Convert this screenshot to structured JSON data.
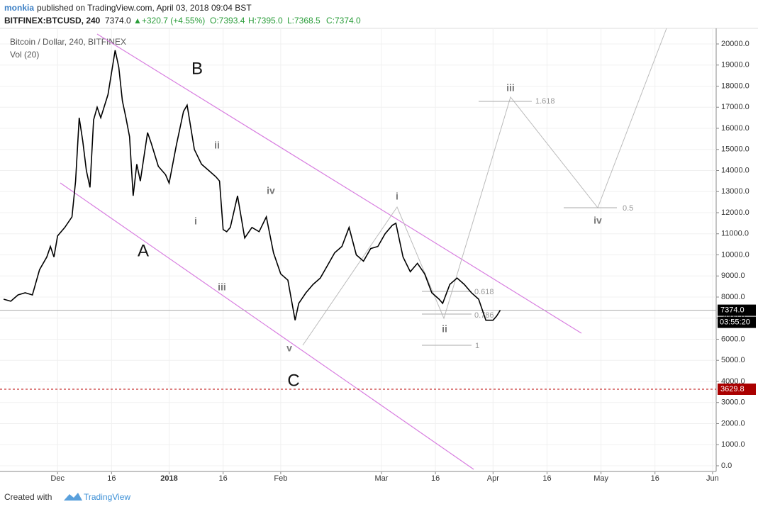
{
  "header": {
    "author": "monkia",
    "published": "published on TradingView.com, April 03, 2018 09:04 BST",
    "symbol": "BITFINEX:BTCUSD, 240",
    "last": "7374.0",
    "change": "▲+320.7 (+4.55%)",
    "ohlc_open": "O:7393.4",
    "ohlc_high": "H:7395.0",
    "ohlc_low": "L:7368.5",
    "ohlc_close": "C:7374.0"
  },
  "footer": {
    "created": "Created with",
    "brand": "TradingView"
  },
  "chart_data": {
    "type": "line",
    "legend": "Bitcoin / Dollar, 240, BITFINEX",
    "volume_legend": "Vol (20)",
    "x": [
      "2017-11-16",
      "2017-11-18",
      "2017-11-20",
      "2017-11-22",
      "2017-11-24",
      "2017-11-26",
      "2017-11-28",
      "2017-11-29",
      "2017-11-30",
      "2017-12-01",
      "2017-12-03",
      "2017-12-05",
      "2017-12-06",
      "2017-12-07",
      "2017-12-08",
      "2017-12-09",
      "2017-12-10",
      "2017-12-11",
      "2017-12-12",
      "2017-12-13",
      "2017-12-15",
      "2017-12-17",
      "2017-12-18",
      "2017-12-19",
      "2017-12-20",
      "2017-12-21",
      "2017-12-22",
      "2017-12-23",
      "2017-12-24",
      "2017-12-26",
      "2017-12-27",
      "2017-12-29",
      "2017-12-31",
      "2018-01-01",
      "2018-01-03",
      "2018-01-05",
      "2018-01-06",
      "2018-01-08",
      "2018-01-10",
      "2018-01-12",
      "2018-01-14",
      "2018-01-15",
      "2018-01-16",
      "2018-01-17",
      "2018-01-18",
      "2018-01-20",
      "2018-01-22",
      "2018-01-24",
      "2018-01-26",
      "2018-01-28",
      "2018-01-30",
      "2018-02-01",
      "2018-02-03",
      "2018-02-05",
      "2018-02-06",
      "2018-02-08",
      "2018-02-10",
      "2018-02-12",
      "2018-02-14",
      "2018-02-16",
      "2018-02-18",
      "2018-02-20",
      "2018-02-22",
      "2018-02-24",
      "2018-02-26",
      "2018-02-28",
      "2018-03-02",
      "2018-03-04",
      "2018-03-05",
      "2018-03-07",
      "2018-03-09",
      "2018-03-11",
      "2018-03-13",
      "2018-03-15",
      "2018-03-17",
      "2018-03-18",
      "2018-03-20",
      "2018-03-22",
      "2018-03-24",
      "2018-03-26",
      "2018-03-28",
      "2018-03-30",
      "2018-04-01",
      "2018-04-02",
      "2018-04-03"
    ],
    "series": [
      {
        "name": "BTCUSD",
        "color": "#000000",
        "values": [
          7900,
          7800,
          8100,
          8200,
          8100,
          9300,
          9900,
          10400,
          9900,
          10900,
          11300,
          11800,
          13500,
          16500,
          15400,
          14000,
          13200,
          16400,
          17000,
          16500,
          17600,
          19700,
          18900,
          17300,
          16500,
          15600,
          12800,
          14300,
          13500,
          15800,
          15300,
          14200,
          13800,
          13400,
          15200,
          16800,
          17100,
          15000,
          14300,
          14000,
          13700,
          13500,
          11200,
          11100,
          11300,
          12800,
          10800,
          11300,
          11100,
          11800,
          10100,
          9100,
          8800,
          6900,
          7700,
          8200,
          8600,
          8900,
          9500,
          10100,
          10400,
          11300,
          10000,
          9700,
          10300,
          10400,
          11000,
          11400,
          11500,
          9900,
          9200,
          9600,
          9100,
          8200,
          7900,
          7700,
          8600,
          8900,
          8600,
          8200,
          7900,
          6900,
          6900,
          7100,
          7374
        ]
      }
    ],
    "xlim": [
      "2017-11-15",
      "2018-06-02"
    ],
    "xticks": [
      {
        "value": "2017-12-01",
        "label": "Dec"
      },
      {
        "value": "2017-12-16",
        "label": "16"
      },
      {
        "value": "2018-01-01",
        "label": "2018"
      },
      {
        "value": "2018-01-16",
        "label": "16"
      },
      {
        "value": "2018-02-01",
        "label": "Feb"
      },
      {
        "value": "2018-03-01",
        "label": "Mar"
      },
      {
        "value": "2018-03-16",
        "label": "16"
      },
      {
        "value": "2018-04-01",
        "label": "Apr"
      },
      {
        "value": "2018-04-16",
        "label": "16"
      },
      {
        "value": "2018-05-01",
        "label": "May"
      },
      {
        "value": "2018-05-16",
        "label": "16"
      },
      {
        "value": "2018-06-01",
        "label": "Jun"
      }
    ],
    "ylim": [
      -270,
      20740
    ],
    "yticks": [
      {
        "value": 0,
        "label": "0.0"
      },
      {
        "value": 1000,
        "label": "1000.0"
      },
      {
        "value": 2000,
        "label": "2000.0"
      },
      {
        "value": 3000,
        "label": "3000.0"
      },
      {
        "value": 4000,
        "label": "4000.0"
      },
      {
        "value": 5000,
        "label": "5000.0"
      },
      {
        "value": 6000,
        "label": "6000.0"
      },
      {
        "value": 7000,
        "label": "7000.0"
      },
      {
        "value": 8000,
        "label": "8000.0"
      },
      {
        "value": 9000,
        "label": "9000.0"
      },
      {
        "value": 10000,
        "label": "10000.0"
      },
      {
        "value": 11000,
        "label": "11000.0"
      },
      {
        "value": 12000,
        "label": "12000.0"
      },
      {
        "value": 13000,
        "label": "13000.0"
      },
      {
        "value": 14000,
        "label": "14000.0"
      },
      {
        "value": 15000,
        "label": "15000.0"
      },
      {
        "value": 16000,
        "label": "16000.0"
      },
      {
        "value": 17000,
        "label": "17000.0"
      },
      {
        "value": 18000,
        "label": "18000.0"
      },
      {
        "value": 19000,
        "label": "19000.0"
      },
      {
        "value": 20000,
        "label": "20000.0"
      }
    ],
    "last_price": {
      "value": 7374,
      "label": "7374.0"
    },
    "countdown": "03:55:20",
    "alert_level": 3629.8,
    "annotations": [
      "B",
      "A",
      "C",
      "ii",
      "i",
      "iv",
      "iii",
      "v",
      "i",
      "ii",
      "iii",
      "iv",
      "0.618",
      "0.786",
      "1",
      "1.618",
      "0.5"
    ]
  }
}
